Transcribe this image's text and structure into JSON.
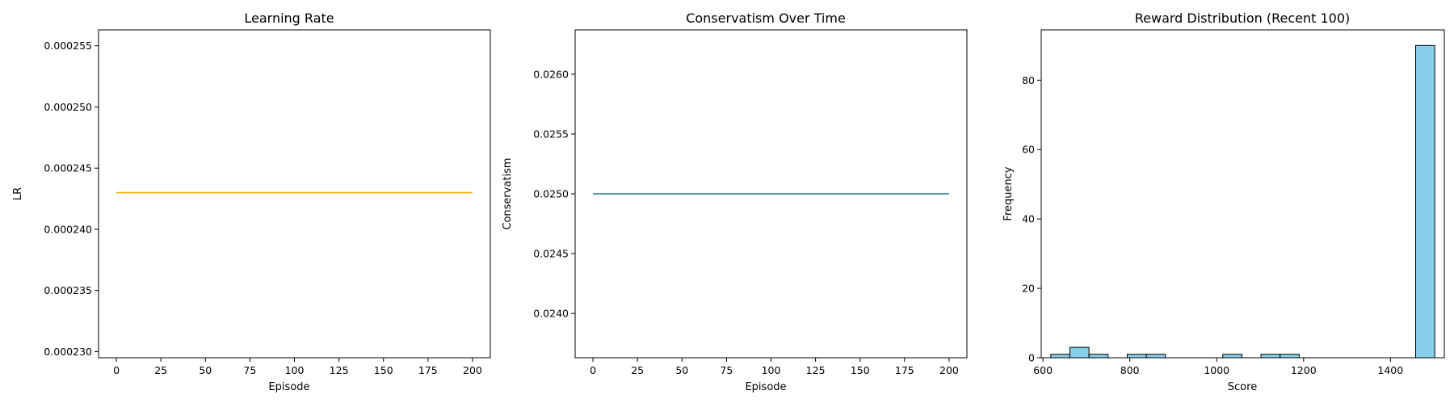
{
  "chart_data": [
    {
      "type": "line",
      "title": "Learning Rate",
      "xlabel": "Episode",
      "ylabel": "LR",
      "xlim": [
        -10,
        210
      ],
      "ylim": [
        0.0002295,
        0.0002563
      ],
      "xticks": [
        0,
        25,
        50,
        75,
        100,
        125,
        150,
        175,
        200
      ],
      "xtick_labels": [
        "0",
        "25",
        "50",
        "75",
        "100",
        "125",
        "150",
        "175",
        "200"
      ],
      "yticks": [
        0.00023,
        0.000235,
        0.00024,
        0.000245,
        0.00025,
        0.000255
      ],
      "ytick_labels": [
        "0.000230",
        "0.000235",
        "0.000240",
        "0.000245",
        "0.000250",
        "0.000255"
      ],
      "grid": false,
      "series": [
        {
          "color": "#ffa500",
          "x": [
            0,
            200
          ],
          "values": [
            0.000243,
            0.000243
          ]
        }
      ]
    },
    {
      "type": "line",
      "title": "Conservatism Over Time",
      "xlabel": "Episode",
      "ylabel": "Conservatism",
      "xlim": [
        -10,
        210
      ],
      "ylim": [
        0.02363,
        0.02637
      ],
      "xticks": [
        0,
        25,
        50,
        75,
        100,
        125,
        150,
        175,
        200
      ],
      "xtick_labels": [
        "0",
        "25",
        "50",
        "75",
        "100",
        "125",
        "150",
        "175",
        "200"
      ],
      "yticks": [
        0.024,
        0.0245,
        0.025,
        0.0255,
        0.026
      ],
      "ytick_labels": [
        "0.0240",
        "0.0245",
        "0.0250",
        "0.0255",
        "0.0260"
      ],
      "grid": false,
      "series": [
        {
          "color": "#1f7a8c",
          "x": [
            0,
            200
          ],
          "values": [
            0.025,
            0.025
          ]
        }
      ]
    },
    {
      "type": "bar",
      "title": "Reward Distribution (Recent 100)",
      "xlabel": "Score",
      "ylabel": "Frequency",
      "xlim": [
        596,
        1524
      ],
      "ylim": [
        0,
        94.5
      ],
      "xticks": [
        600,
        800,
        1000,
        1200,
        1400
      ],
      "xtick_labels": [
        "600",
        "800",
        "1000",
        "1200",
        "1400"
      ],
      "yticks": [
        0,
        20,
        40,
        60,
        80
      ],
      "ytick_labels": [
        "0",
        "20",
        "40",
        "60",
        "80"
      ],
      "grid": false,
      "bar_color": "#87ceeb",
      "edge_color": "#000000",
      "bins": [
        {
          "start": 618,
          "end": 662,
          "count": 1
        },
        {
          "start": 662,
          "end": 706,
          "count": 3
        },
        {
          "start": 706,
          "end": 750,
          "count": 1
        },
        {
          "start": 794,
          "end": 838,
          "count": 1
        },
        {
          "start": 838,
          "end": 882,
          "count": 1
        },
        {
          "start": 1014,
          "end": 1058,
          "count": 1
        },
        {
          "start": 1102,
          "end": 1146,
          "count": 1
        },
        {
          "start": 1146,
          "end": 1190,
          "count": 1
        },
        {
          "start": 1458,
          "end": 1502,
          "count": 90
        }
      ]
    }
  ]
}
